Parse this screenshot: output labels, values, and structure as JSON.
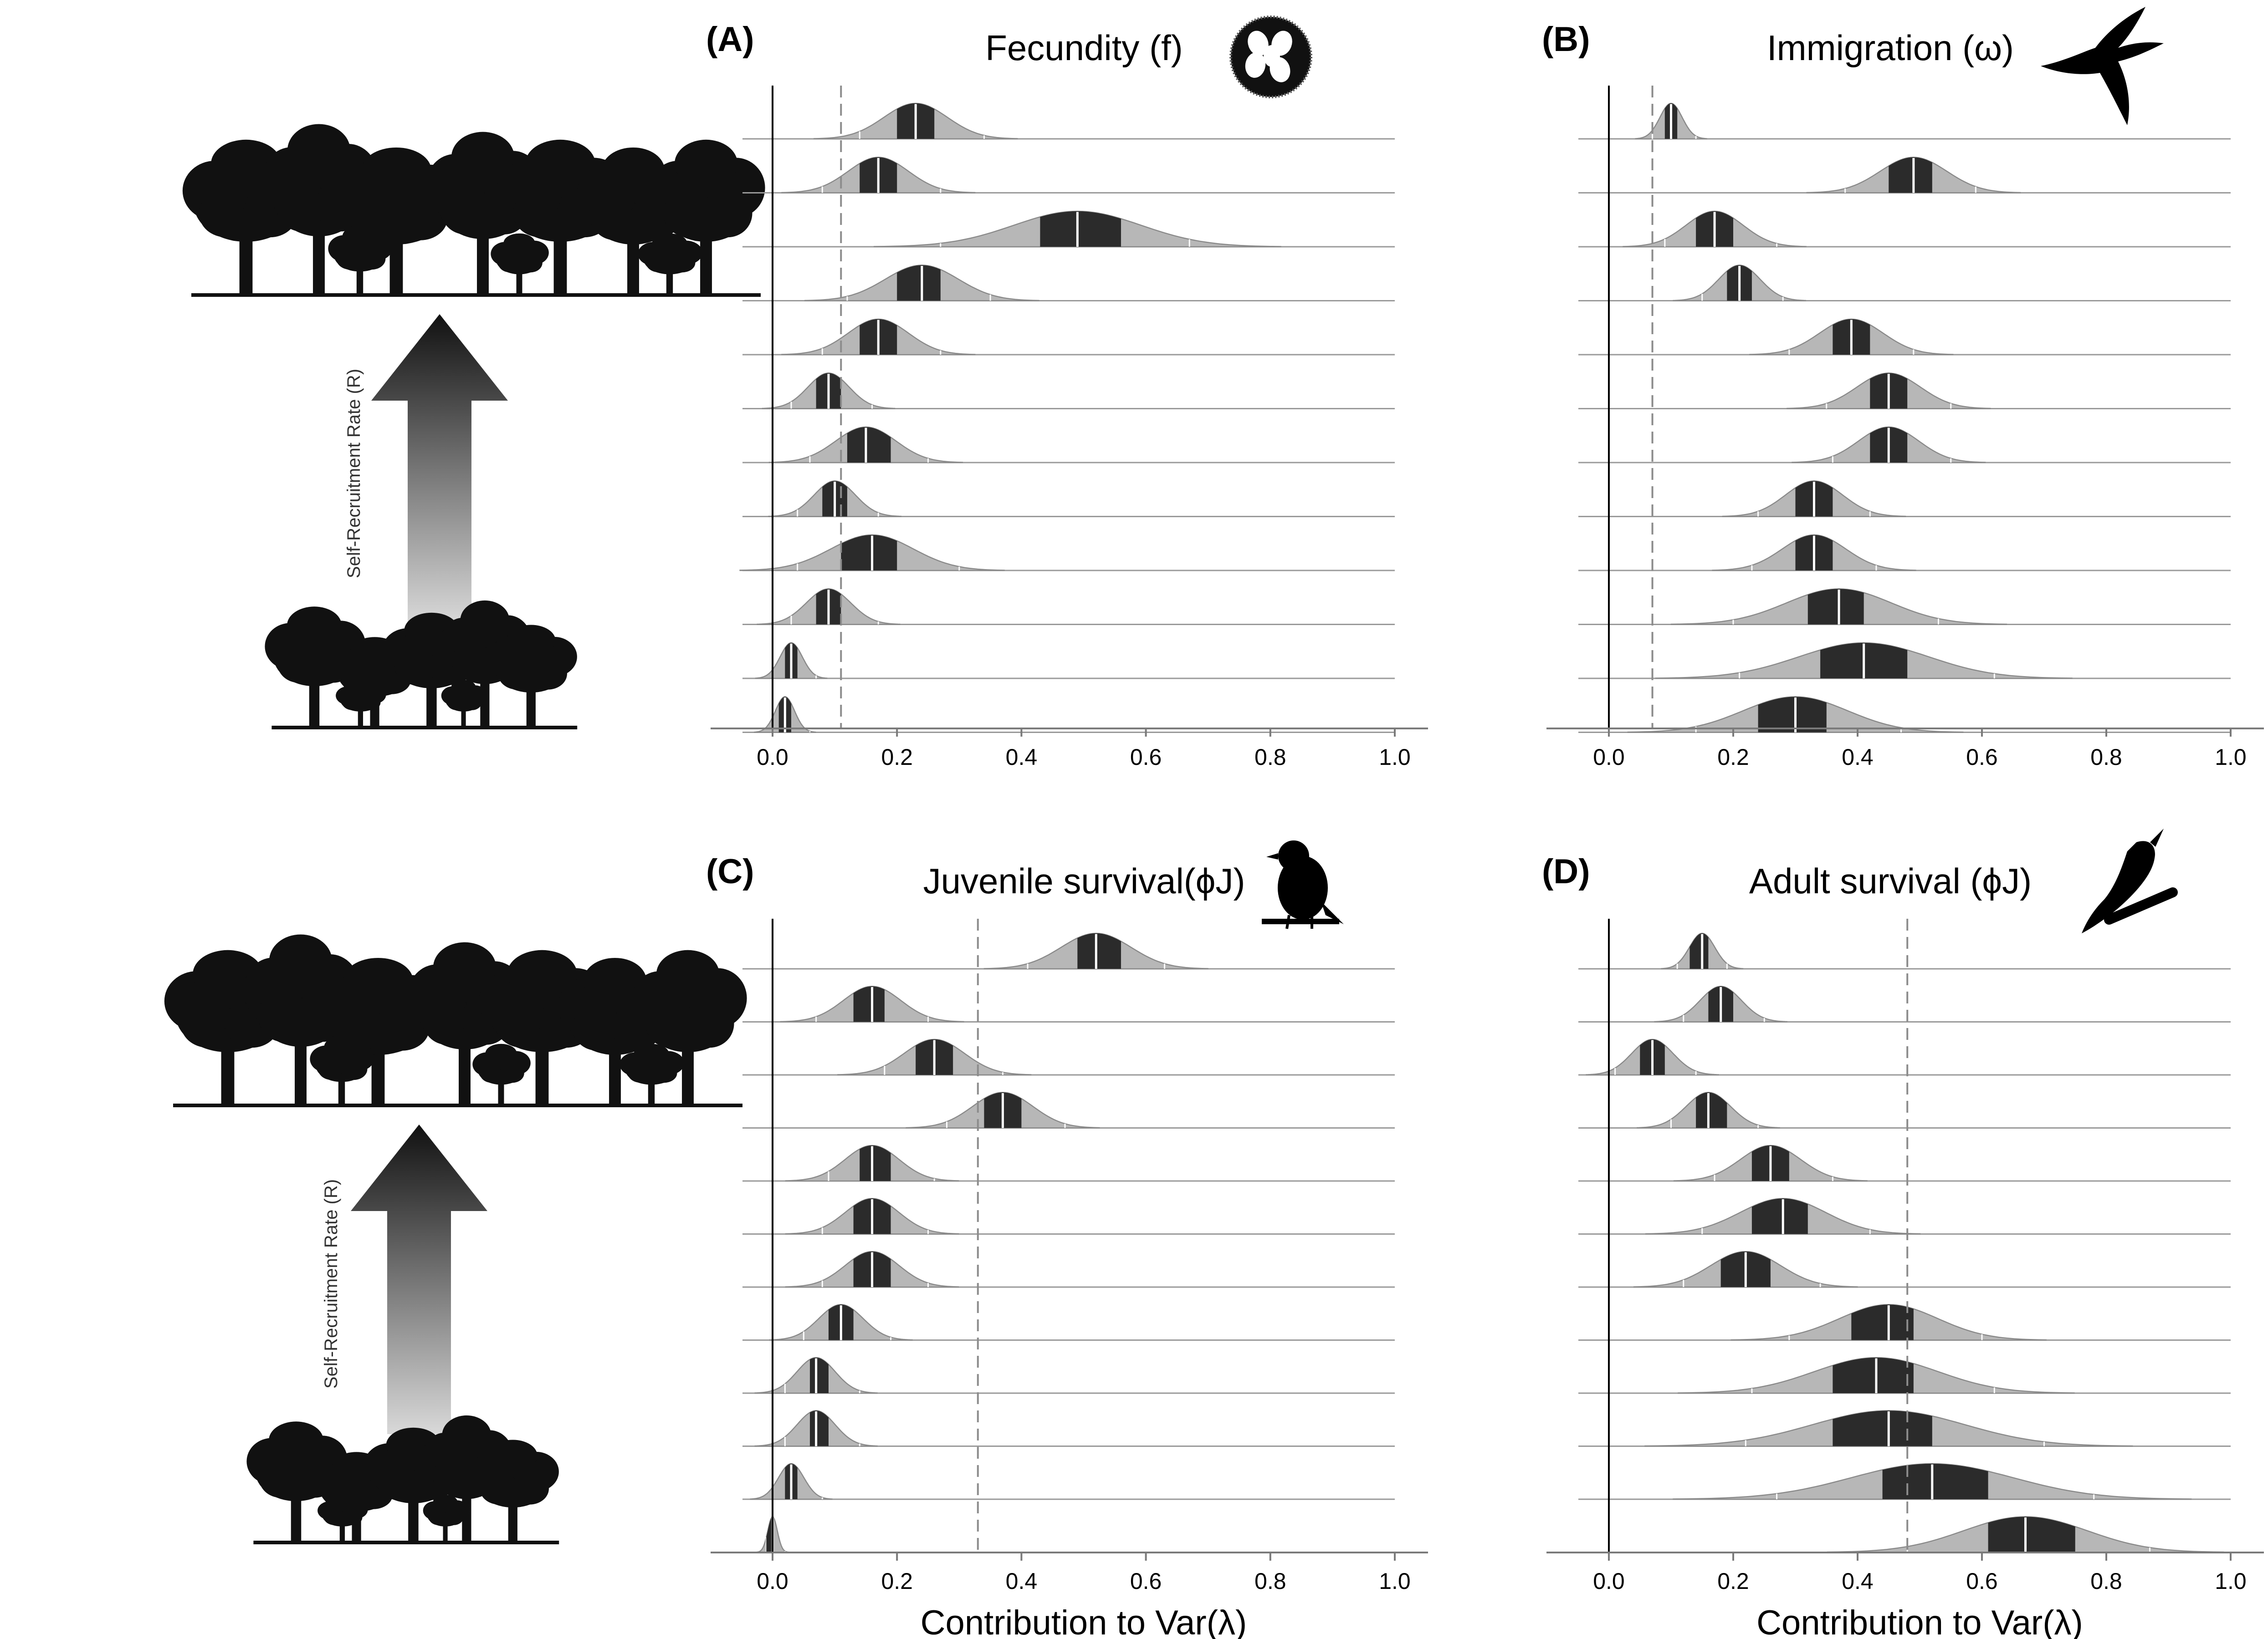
{
  "figure": {
    "side_axis_label": "Self-Recruitment Rate (R)"
  },
  "colors": {
    "outer_density": "#b7b7b7",
    "inner_band": "#2b2b2b",
    "baseline": "#9a9a9a",
    "dashed": "#8c8c8c",
    "axis": "#000000"
  },
  "chart_data": [
    {
      "id": "A",
      "panel_label": "(A)",
      "title": "Fecundity (f)",
      "type": "ridgeline",
      "xlabel": "",
      "xlim": [
        -0.05,
        1.0
      ],
      "xticks": [
        "0.0",
        "0.2",
        "0.4",
        "0.6",
        "0.8",
        "1.0"
      ],
      "reference_line": 0.11,
      "icon": "nest-eggs-icon",
      "rows": [
        {
          "median": 0.23,
          "lo50": 0.2,
          "hi50": 0.26,
          "lo95": 0.14,
          "hi95": 0.34
        },
        {
          "median": 0.17,
          "lo50": 0.14,
          "hi50": 0.2,
          "lo95": 0.08,
          "hi95": 0.27
        },
        {
          "median": 0.49,
          "lo50": 0.43,
          "hi50": 0.56,
          "lo95": 0.27,
          "hi95": 0.67
        },
        {
          "median": 0.24,
          "lo50": 0.2,
          "hi50": 0.27,
          "lo95": 0.12,
          "hi95": 0.35
        },
        {
          "median": 0.17,
          "lo50": 0.14,
          "hi50": 0.2,
          "lo95": 0.08,
          "hi95": 0.27
        },
        {
          "median": 0.09,
          "lo50": 0.07,
          "hi50": 0.11,
          "lo95": 0.03,
          "hi95": 0.16
        },
        {
          "median": 0.15,
          "lo50": 0.12,
          "hi50": 0.19,
          "lo95": 0.06,
          "hi95": 0.25
        },
        {
          "median": 0.1,
          "lo50": 0.08,
          "hi50": 0.12,
          "lo95": 0.04,
          "hi95": 0.17
        },
        {
          "median": 0.16,
          "lo50": 0.11,
          "hi50": 0.2,
          "lo95": 0.04,
          "hi95": 0.3
        },
        {
          "median": 0.09,
          "lo50": 0.07,
          "hi50": 0.11,
          "lo95": 0.03,
          "hi95": 0.17
        },
        {
          "median": 0.03,
          "lo50": 0.02,
          "hi50": 0.04,
          "lo95": 0.0,
          "hi95": 0.07
        },
        {
          "median": 0.02,
          "lo50": 0.01,
          "hi50": 0.03,
          "lo95": 0.0,
          "hi95": 0.06
        }
      ]
    },
    {
      "id": "B",
      "panel_label": "(B)",
      "title": "Immigration (ω)",
      "type": "ridgeline",
      "xlabel": "",
      "xlim": [
        -0.05,
        1.0
      ],
      "xticks": [
        "0.0",
        "0.2",
        "0.4",
        "0.6",
        "0.8",
        "1.0"
      ],
      "reference_line": 0.07,
      "icon": "flying-bird-icon",
      "rows": [
        {
          "median": 0.1,
          "lo50": 0.09,
          "hi50": 0.11,
          "lo95": 0.07,
          "hi95": 0.14
        },
        {
          "median": 0.49,
          "lo50": 0.45,
          "hi50": 0.52,
          "lo95": 0.38,
          "hi95": 0.59
        },
        {
          "median": 0.17,
          "lo50": 0.14,
          "hi50": 0.2,
          "lo95": 0.09,
          "hi95": 0.27
        },
        {
          "median": 0.21,
          "lo50": 0.19,
          "hi50": 0.23,
          "lo95": 0.15,
          "hi95": 0.28
        },
        {
          "median": 0.39,
          "lo50": 0.36,
          "hi50": 0.42,
          "lo95": 0.29,
          "hi95": 0.49
        },
        {
          "median": 0.45,
          "lo50": 0.42,
          "hi50": 0.48,
          "lo95": 0.35,
          "hi95": 0.55
        },
        {
          "median": 0.45,
          "lo50": 0.42,
          "hi50": 0.48,
          "lo95": 0.36,
          "hi95": 0.55
        },
        {
          "median": 0.33,
          "lo50": 0.3,
          "hi50": 0.36,
          "lo95": 0.24,
          "hi95": 0.42
        },
        {
          "median": 0.33,
          "lo50": 0.3,
          "hi50": 0.36,
          "lo95": 0.23,
          "hi95": 0.43
        },
        {
          "median": 0.37,
          "lo50": 0.32,
          "hi50": 0.41,
          "lo95": 0.2,
          "hi95": 0.53
        },
        {
          "median": 0.41,
          "lo50": 0.34,
          "hi50": 0.48,
          "lo95": 0.21,
          "hi95": 0.62
        },
        {
          "median": 0.3,
          "lo50": 0.24,
          "hi50": 0.35,
          "lo95": 0.14,
          "hi95": 0.47
        }
      ]
    },
    {
      "id": "C",
      "panel_label": "(C)",
      "title": "Juvenile survival(ϕJ)",
      "type": "ridgeline",
      "xlabel": "Contribution to Var(λ)",
      "xlim": [
        -0.05,
        1.0
      ],
      "xticks": [
        "0.0",
        "0.2",
        "0.4",
        "0.6",
        "0.8",
        "1.0"
      ],
      "reference_line": 0.33,
      "icon": "perched-bird-icon",
      "rows": [
        {
          "median": 0.52,
          "lo50": 0.49,
          "hi50": 0.56,
          "lo95": 0.41,
          "hi95": 0.63
        },
        {
          "median": 0.16,
          "lo50": 0.13,
          "hi50": 0.18,
          "lo95": 0.07,
          "hi95": 0.25
        },
        {
          "median": 0.26,
          "lo50": 0.23,
          "hi50": 0.29,
          "lo95": 0.18,
          "hi95": 0.37
        },
        {
          "median": 0.37,
          "lo50": 0.34,
          "hi50": 0.4,
          "lo95": 0.28,
          "hi95": 0.47
        },
        {
          "median": 0.16,
          "lo50": 0.14,
          "hi50": 0.19,
          "lo95": 0.09,
          "hi95": 0.26
        },
        {
          "median": 0.16,
          "lo50": 0.13,
          "hi50": 0.19,
          "lo95": 0.08,
          "hi95": 0.25
        },
        {
          "median": 0.16,
          "lo50": 0.13,
          "hi50": 0.19,
          "lo95": 0.08,
          "hi95": 0.25
        },
        {
          "median": 0.11,
          "lo50": 0.09,
          "hi50": 0.13,
          "lo95": 0.05,
          "hi95": 0.19
        },
        {
          "median": 0.07,
          "lo50": 0.06,
          "hi50": 0.09,
          "lo95": 0.02,
          "hi95": 0.14
        },
        {
          "median": 0.07,
          "lo50": 0.06,
          "hi50": 0.09,
          "lo95": 0.02,
          "hi95": 0.14
        },
        {
          "median": 0.03,
          "lo50": 0.02,
          "hi50": 0.04,
          "lo95": 0.0,
          "hi95": 0.08
        },
        {
          "median": 0.0,
          "lo50": -0.01,
          "hi50": 0.0,
          "lo95": -0.01,
          "hi95": 0.02
        }
      ]
    },
    {
      "id": "D",
      "panel_label": "(D)",
      "title": "Adult survival (ϕJ)",
      "type": "ridgeline",
      "xlabel": "Contribution to Var(λ)",
      "xlim": [
        -0.05,
        1.0
      ],
      "xticks": [
        "0.0",
        "0.2",
        "0.4",
        "0.6",
        "0.8",
        "1.0"
      ],
      "reference_line": 0.48,
      "icon": "singing-bird-icon",
      "rows": [
        {
          "median": 0.15,
          "lo50": 0.13,
          "hi50": 0.16,
          "lo95": 0.11,
          "hi95": 0.19
        },
        {
          "median": 0.18,
          "lo50": 0.16,
          "hi50": 0.2,
          "lo95": 0.12,
          "hi95": 0.25
        },
        {
          "median": 0.07,
          "lo50": 0.05,
          "hi50": 0.09,
          "lo95": 0.01,
          "hi95": 0.14
        },
        {
          "median": 0.16,
          "lo50": 0.14,
          "hi50": 0.19,
          "lo95": 0.1,
          "hi95": 0.24
        },
        {
          "median": 0.26,
          "lo50": 0.23,
          "hi50": 0.29,
          "lo95": 0.17,
          "hi95": 0.36
        },
        {
          "median": 0.28,
          "lo50": 0.23,
          "hi50": 0.32,
          "lo95": 0.15,
          "hi95": 0.42
        },
        {
          "median": 0.22,
          "lo50": 0.18,
          "hi50": 0.26,
          "lo95": 0.12,
          "hi95": 0.34
        },
        {
          "median": 0.45,
          "lo50": 0.39,
          "hi50": 0.49,
          "lo95": 0.29,
          "hi95": 0.6
        },
        {
          "median": 0.43,
          "lo50": 0.36,
          "hi50": 0.49,
          "lo95": 0.23,
          "hi95": 0.62
        },
        {
          "median": 0.45,
          "lo50": 0.36,
          "hi50": 0.52,
          "lo95": 0.22,
          "hi95": 0.7
        },
        {
          "median": 0.52,
          "lo50": 0.44,
          "hi50": 0.61,
          "lo95": 0.27,
          "hi95": 0.78
        },
        {
          "median": 0.67,
          "lo50": 0.61,
          "hi50": 0.75,
          "lo95": 0.48,
          "hi95": 0.87
        }
      ]
    }
  ]
}
